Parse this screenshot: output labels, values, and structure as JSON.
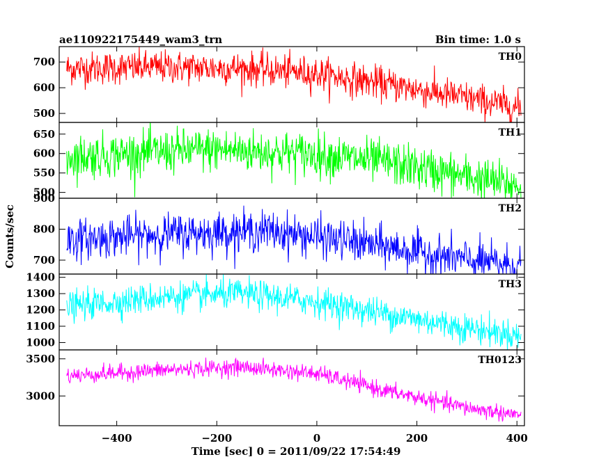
{
  "chart_data": {
    "type": "line",
    "title": "ae110922175449_wam3_trn",
    "bin_time_label": "Bin time: 1.0 s",
    "xlabel": "Time [sec] 0 = 2011/09/22 17:54:49",
    "ylabel": "Counts/sec",
    "xlim": [
      -515,
      415
    ],
    "x_ticks": [
      -400,
      -200,
      0,
      200,
      400
    ],
    "x_tick_labels": [
      "−400",
      "−200",
      "0",
      "200",
      "400"
    ],
    "x_range": [
      -500,
      408
    ],
    "panels": [
      {
        "name": "TH0",
        "color": "#ff0000",
        "ylim": [
          465,
          760
        ],
        "y_ticks": [
          500,
          600,
          700
        ],
        "y_tick_labels": [
          "500",
          "600",
          "700"
        ],
        "trend_x": [
          -500,
          -300,
          -150,
          0,
          150,
          300,
          408
        ],
        "trend_y": [
          675,
          680,
          675,
          655,
          610,
          560,
          520
        ],
        "noise": 32
      },
      {
        "name": "TH1",
        "color": "#00ff00",
        "ylim": [
          485,
          680
        ],
        "y_ticks": [
          500,
          550,
          600,
          650
        ],
        "y_tick_labels": [
          "500",
          "550",
          "600",
          "650"
        ],
        "trend_x": [
          -500,
          -300,
          -200,
          0,
          150,
          300,
          408
        ],
        "trend_y": [
          590,
          605,
          610,
          598,
          575,
          540,
          515
        ],
        "noise": 28
      },
      {
        "name": "TH2",
        "color": "#0000ff",
        "ylim": [
          655,
          900
        ],
        "y_ticks": [
          700,
          800,
          900
        ],
        "y_tick_labels": [
          "700",
          "800",
          "900"
        ],
        "trend_x": [
          -500,
          -300,
          -100,
          0,
          150,
          300,
          408
        ],
        "trend_y": [
          765,
          785,
          795,
          775,
          740,
          700,
          680
        ],
        "noise": 32
      },
      {
        "name": "TH3",
        "color": "#00ffff",
        "ylim": [
          955,
          1420
        ],
        "y_ticks": [
          1000,
          1100,
          1200,
          1300,
          1400
        ],
        "y_tick_labels": [
          "1000",
          "1100",
          "1200",
          "1300",
          "1400"
        ],
        "trend_x": [
          -500,
          -300,
          -150,
          0,
          150,
          300,
          408
        ],
        "trend_y": [
          1220,
          1280,
          1300,
          1250,
          1170,
          1090,
          1040
        ],
        "noise": 45
      },
      {
        "name": "TH0123",
        "color": "#ff00ff",
        "ylim": [
          2600,
          3620
        ],
        "y_ticks": [
          3000,
          3500
        ],
        "y_tick_labels": [
          "3000",
          "3500"
        ],
        "trend_x": [
          -500,
          -300,
          -150,
          0,
          150,
          300,
          408
        ],
        "trend_y": [
          3270,
          3350,
          3390,
          3300,
          3050,
          2840,
          2740
        ],
        "noise": 55
      }
    ]
  }
}
